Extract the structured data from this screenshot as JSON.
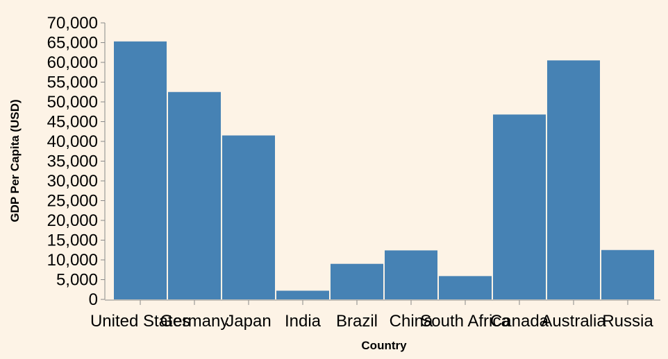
{
  "chart_data": {
    "type": "bar",
    "xlabel": "Country",
    "ylabel": "GDP Per Capita (USD)",
    "ylim": [
      0,
      70000
    ],
    "ytick_step": 5000,
    "categories": [
      "United States",
      "Germany",
      "Japan",
      "India",
      "Brazil",
      "China",
      "South Africa",
      "Canada",
      "Australia",
      "Russia"
    ],
    "values": [
      65300,
      52500,
      41500,
      2200,
      9000,
      12400,
      5900,
      46800,
      60500,
      12500
    ],
    "bar_color": "#4682b4",
    "axis_color": "#888888",
    "background": "#fdf3e6"
  }
}
